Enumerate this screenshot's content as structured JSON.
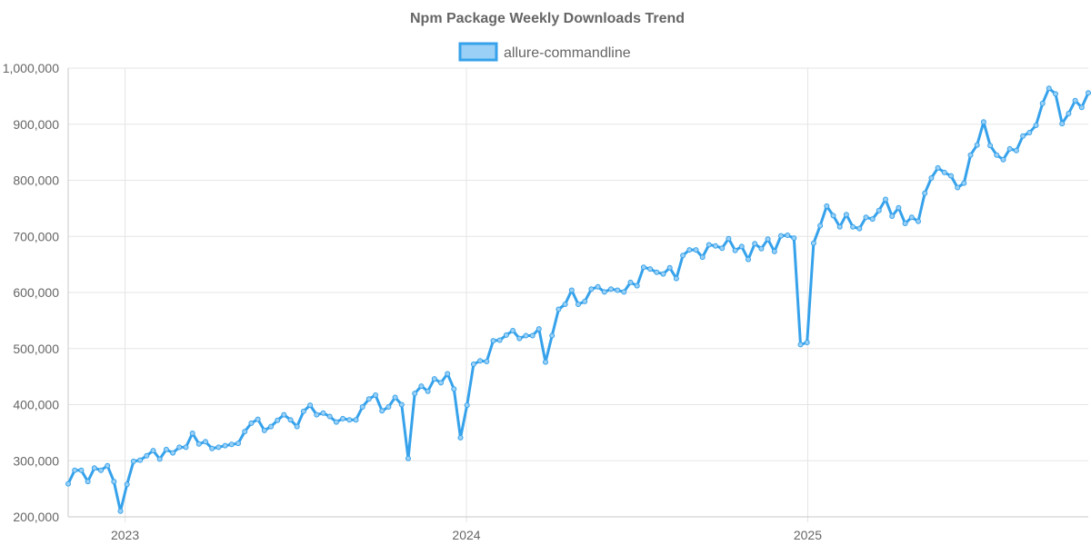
{
  "chart_data": {
    "type": "line",
    "title": "Npm Package Weekly Downloads Trend",
    "xlabel": "",
    "ylabel": "",
    "ylim": [
      200000,
      1000000
    ],
    "y_ticks": [
      200000,
      300000,
      400000,
      500000,
      600000,
      700000,
      800000,
      900000,
      1000000
    ],
    "y_tick_labels": [
      "200,000",
      "300,000",
      "400,000",
      "500,000",
      "600,000",
      "700,000",
      "800,000",
      "900,000",
      "1,000,000"
    ],
    "x_unit": "week index (0 = week starting 2022-11-06)",
    "xlim": [
      0,
      156
    ],
    "x_ticks": [
      {
        "x": 8.7,
        "label": "2023"
      },
      {
        "x": 60.9,
        "label": "2024"
      },
      {
        "x": 113.1,
        "label": "2025"
      }
    ],
    "grid": true,
    "legend_position": "top-center",
    "colors": {
      "line": "#36a2eb",
      "fill": "#9ad0f5",
      "grid": "#e5e5e5",
      "axis": "#c8c8c8",
      "text": "#666666"
    },
    "series": [
      {
        "name": "allure-commandline",
        "values": [
          259000,
          283000,
          283000,
          263000,
          287000,
          283000,
          291000,
          263000,
          210000,
          258000,
          299000,
          301000,
          309000,
          318000,
          303000,
          320000,
          314000,
          324000,
          324000,
          349000,
          330000,
          334000,
          322000,
          324000,
          327000,
          329000,
          331000,
          352000,
          367000,
          374000,
          354000,
          361000,
          372000,
          382000,
          373000,
          361000,
          388000,
          399000,
          382000,
          385000,
          379000,
          369000,
          375000,
          373000,
          373000,
          396000,
          410000,
          417000,
          389000,
          396000,
          413000,
          400000,
          304000,
          420000,
          433000,
          424000,
          446000,
          439000,
          455000,
          428000,
          341000,
          399000,
          472000,
          478000,
          477000,
          514000,
          515000,
          524000,
          532000,
          518000,
          523000,
          523000,
          535000,
          476000,
          523000,
          570000,
          579000,
          604000,
          579000,
          584000,
          606000,
          610000,
          601000,
          606000,
          604000,
          601000,
          618000,
          612000,
          645000,
          642000,
          636000,
          633000,
          644000,
          625000,
          666000,
          676000,
          676000,
          663000,
          685000,
          683000,
          679000,
          696000,
          675000,
          682000,
          659000,
          687000,
          678000,
          695000,
          673000,
          701000,
          702000,
          697000,
          507000,
          511000,
          688000,
          719000,
          754000,
          737000,
          717000,
          739000,
          717000,
          714000,
          734000,
          731000,
          746000,
          766000,
          736000,
          751000,
          723000,
          734000,
          727000,
          777000,
          804000,
          822000,
          814000,
          808000,
          787000,
          795000,
          845000,
          863000,
          904000,
          862000,
          845000,
          837000,
          856000,
          853000,
          879000,
          885000,
          898000,
          937000,
          964000,
          954000,
          901000,
          919000,
          942000,
          930000,
          956000
        ]
      }
    ]
  }
}
